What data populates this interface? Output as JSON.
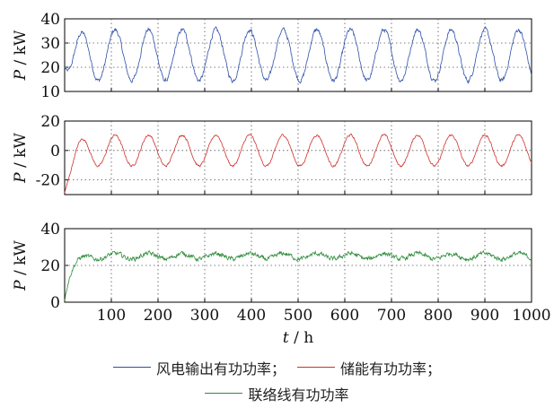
{
  "chart_data": {
    "type": "line",
    "x": {
      "label": "t / h",
      "label_var": "t",
      "label_unit": "/ h",
      "lim": [
        0,
        1000
      ],
      "ticks": [
        "100",
        "200",
        "300",
        "400",
        "500",
        "600",
        "700",
        "800",
        "900",
        "1000"
      ]
    },
    "grid": "dotted",
    "panels": [
      {
        "ylabel": "P / kW",
        "ylim": [
          10,
          40
        ],
        "yticks": [
          "10",
          "20",
          "30",
          "40"
        ],
        "series": [
          {
            "name": "风电输出有功功率",
            "color": "#2d4fa8",
            "period_h": 72,
            "mean": 25,
            "amplitude": 10.5,
            "noise": 1.6,
            "start": 20
          }
        ]
      },
      {
        "ylabel": "P / kW",
        "ylim": [
          -30,
          20
        ],
        "yticks": [
          "-20",
          "0",
          "20"
        ],
        "series": [
          {
            "name": "储能有功功率",
            "color": "#d0302c",
            "period_h": 72,
            "mean": 0,
            "amplitude": 10.5,
            "noise": 1.3,
            "start": -29
          }
        ]
      },
      {
        "ylabel": "P / kW",
        "ylim": [
          0,
          40
        ],
        "yticks": [
          "0",
          "20",
          "40"
        ],
        "series": [
          {
            "name": "联络线有功功率",
            "color": "#2e8b3a",
            "period_h": 72,
            "mean": 25,
            "amplitude": 1.5,
            "noise": 2.2,
            "start": 1
          }
        ]
      }
    ],
    "legend": {
      "placement": "bottom",
      "row1": [
        "风电输出有功功率；",
        "储能有功功率；"
      ],
      "row2": [
        "联络线有功功率"
      ]
    }
  }
}
